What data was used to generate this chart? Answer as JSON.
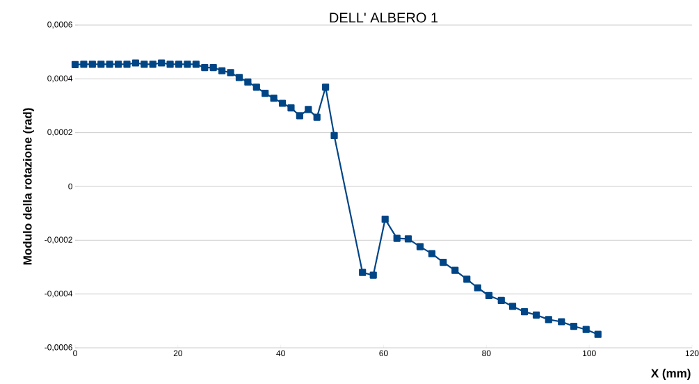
{
  "chart_data": {
    "type": "line",
    "title": "DELL' ALBERO 1",
    "xlabel": "X (mm)",
    "ylabel": "Modulo della rotazione  (rad)",
    "xlim": [
      0,
      120
    ],
    "xticks": [
      0,
      20,
      40,
      60,
      80,
      100,
      120
    ],
    "ylim": [
      -0.0006,
      0.0006
    ],
    "yticks": [
      {
        "value": -0.0006,
        "label": "-0,0006"
      },
      {
        "value": -0.0004,
        "label": "-0,0004"
      },
      {
        "value": -0.0002,
        "label": "-0,0002"
      },
      {
        "value": 0,
        "label": "0"
      },
      {
        "value": 0.0002,
        "label": "0,0002"
      },
      {
        "value": 0.0004,
        "label": "0,0004"
      },
      {
        "value": 0.0006,
        "label": "0,0006"
      }
    ],
    "grid": "y",
    "marker": "square",
    "line_style": "solid",
    "series": [
      {
        "color": "#004586",
        "x": [
          0,
          1.68,
          3.36,
          5.04,
          6.72,
          8.4,
          10.08,
          11.76,
          13.44,
          15.12,
          16.8,
          18.48,
          20.16,
          21.84,
          23.52,
          25.2,
          26.88,
          28.56,
          30.24,
          31.92,
          33.6,
          35.28,
          36.96,
          38.64,
          40.32,
          42.0,
          43.68,
          45.36,
          47.04,
          48.72,
          50.4,
          55.9,
          58.0,
          60.3,
          62.6,
          64.8,
          67.1,
          69.4,
          71.6,
          73.9,
          76.2,
          78.3,
          80.5,
          82.9,
          85.1,
          87.4,
          89.7,
          92.1,
          94.6,
          97.0,
          99.4,
          101.7
        ],
        "values": [
          0.000453,
          0.000454,
          0.000454,
          0.000454,
          0.000454,
          0.000454,
          0.000454,
          0.000459,
          0.000454,
          0.000454,
          0.000459,
          0.000454,
          0.000454,
          0.000454,
          0.000454,
          0.000442,
          0.000442,
          0.00043,
          0.000423,
          0.000405,
          0.000388,
          0.000369,
          0.000346,
          0.000328,
          0.000309,
          0.000292,
          0.000263,
          0.000286,
          0.000257,
          0.000369,
          0.000189,
          -0.00032,
          -0.00033,
          -0.000122,
          -0.000193,
          -0.000195,
          -0.000224,
          -0.00025,
          -0.000282,
          -0.000312,
          -0.000345,
          -0.000377,
          -0.000406,
          -0.000424,
          -0.000446,
          -0.000466,
          -0.000478,
          -0.000495,
          -0.000503,
          -0.00052,
          -0.000532,
          -0.00055
        ]
      }
    ]
  }
}
